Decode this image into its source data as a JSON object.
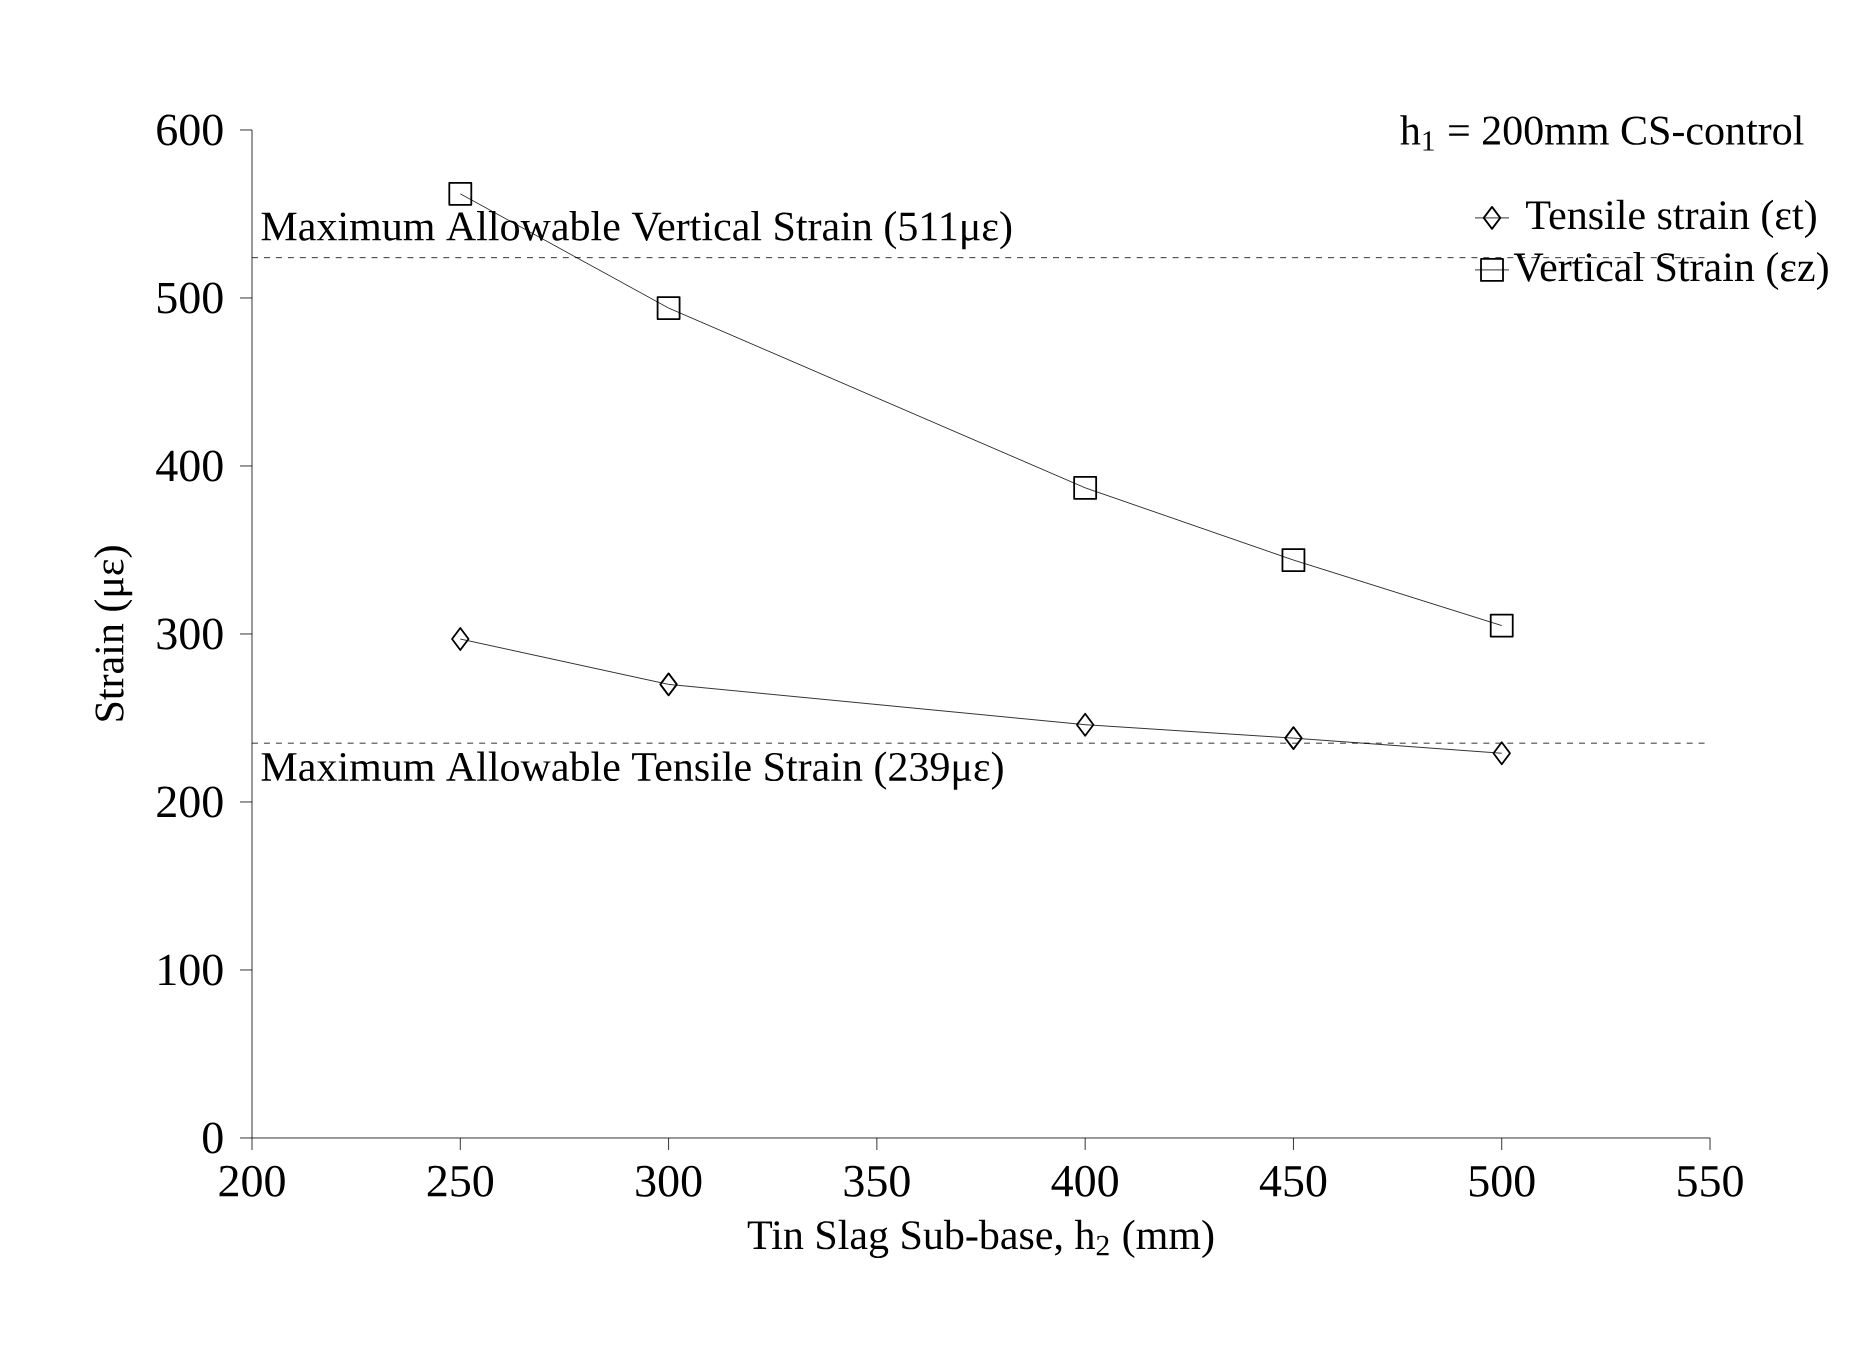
{
  "chart_data": {
    "type": "line",
    "xlabel": "Tin Slag Sub-base, h$_{2}$ (mm)",
    "ylabel": "Strain (με)",
    "legend_title": "h$_{1}$ = 200mm CS-control",
    "x": [
      250,
      300,
      400,
      450,
      500
    ],
    "series": [
      {
        "name": "Tensile strain (εt)",
        "color": "#000000",
        "marker": "diamond",
        "values": [
          297,
          270,
          246,
          238,
          229
        ]
      },
      {
        "name": "Vertical Strain (εz)",
        "color": "#000000",
        "marker": "square",
        "values": [
          562,
          494,
          387,
          344,
          305
        ]
      }
    ],
    "xlim": [
      200,
      550
    ],
    "xticks": [
      200,
      250,
      300,
      350,
      400,
      450,
      500,
      550
    ],
    "ylim": [
      0,
      600
    ],
    "yticks": [
      0,
      100,
      200,
      300,
      400,
      500,
      600
    ],
    "ref_lines": [
      {
        "axis": "y",
        "value": 524,
        "label": "Maximum Allowable Vertical Strain (511με)",
        "line_style": "dashed",
        "color": "#000000"
      },
      {
        "axis": "y",
        "value": 235,
        "label": "Maximum Allowable Tensile Strain (239με)",
        "line_style": "dashed",
        "color": "#000000"
      }
    ],
    "grid": false,
    "legend": "top right",
    "line_style": "solid"
  }
}
